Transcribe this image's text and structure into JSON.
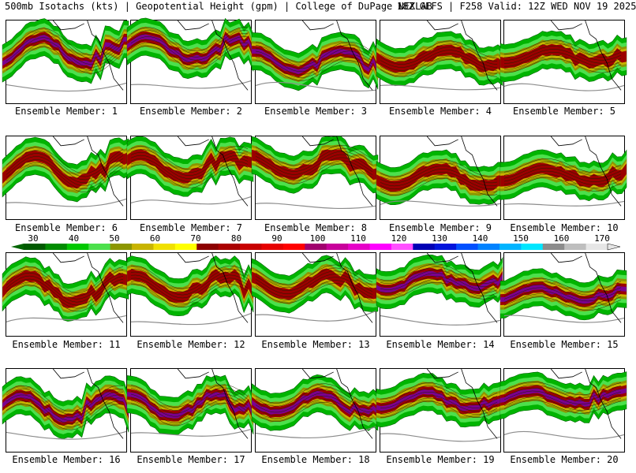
{
  "header": {
    "left": "500mb Isotachs (kts) | Geopotential Height (gpm) | College of DuPage NEXLAB",
    "right": "18Z GEFS | F258 Valid: 12Z WED NOV 19 2025"
  },
  "colorbar": {
    "tick_labels": [
      "30",
      "40",
      "50",
      "60",
      "70",
      "80",
      "90",
      "100",
      "110",
      "120",
      "130",
      "140",
      "150",
      "160",
      "170"
    ],
    "colors": [
      "#005a00",
      "#008c00",
      "#00c800",
      "#4ce04c",
      "#8c9600",
      "#c8b400",
      "#f0e000",
      "#ffff00",
      "#8c0000",
      "#aa0000",
      "#c80000",
      "#e60000",
      "#ff0000",
      "#a0006e",
      "#c8009b",
      "#e600c8",
      "#ff00ff",
      "#ff50ff",
      "#0000b4",
      "#0014dc",
      "#0050ff",
      "#0082ff",
      "#00b4ff",
      "#00e6ff",
      "#8c8c8c",
      "#bebebe",
      "#e6e6e6"
    ]
  },
  "members": [
    {
      "label": "Ensemble Member: 1"
    },
    {
      "label": "Ensemble Member: 2"
    },
    {
      "label": "Ensemble Member: 3"
    },
    {
      "label": "Ensemble Member: 4"
    },
    {
      "label": "Ensemble Member: 5"
    },
    {
      "label": "Ensemble Member: 6"
    },
    {
      "label": "Ensemble Member: 7"
    },
    {
      "label": "Ensemble Member: 8"
    },
    {
      "label": "Ensemble Member: 9"
    },
    {
      "label": "Ensemble Member: 10"
    },
    {
      "label": "Ensemble Member: 11"
    },
    {
      "label": "Ensemble Member: 12"
    },
    {
      "label": "Ensemble Member: 13"
    },
    {
      "label": "Ensemble Member: 14"
    },
    {
      "label": "Ensemble Member: 15"
    },
    {
      "label": "Ensemble Member: 16"
    },
    {
      "label": "Ensemble Member: 17"
    },
    {
      "label": "Ensemble Member: 18"
    },
    {
      "label": "Ensemble Member: 19"
    },
    {
      "label": "Ensemble Member: 20"
    }
  ]
}
